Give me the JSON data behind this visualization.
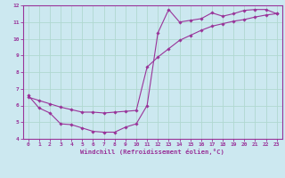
{
  "xlabel": "Windchill (Refroidissement éolien,°C)",
  "bg_color": "#cce8f0",
  "grid_color": "#b0d8d0",
  "line_color": "#993399",
  "spine_color": "#993399",
  "xlim": [
    -0.5,
    23.5
  ],
  "ylim": [
    4,
    12
  ],
  "xticks": [
    0,
    1,
    2,
    3,
    4,
    5,
    6,
    7,
    8,
    9,
    10,
    11,
    12,
    13,
    14,
    15,
    16,
    17,
    18,
    19,
    20,
    21,
    22,
    23
  ],
  "yticks": [
    4,
    5,
    6,
    7,
    8,
    9,
    10,
    11,
    12
  ],
  "curve1_x": [
    0,
    1,
    2,
    3,
    4,
    5,
    6,
    7,
    8,
    9,
    10,
    11,
    12,
    13,
    14,
    15,
    16,
    17,
    18,
    19,
    20,
    21,
    22,
    23
  ],
  "curve1_y": [
    6.6,
    5.85,
    5.55,
    4.9,
    4.85,
    4.65,
    4.45,
    4.4,
    4.4,
    4.7,
    4.9,
    6.0,
    10.35,
    11.75,
    11.0,
    11.1,
    11.2,
    11.55,
    11.35,
    11.5,
    11.7,
    11.75,
    11.75,
    11.5
  ],
  "curve2_x": [
    0,
    1,
    2,
    3,
    4,
    5,
    6,
    7,
    8,
    9,
    10,
    11,
    12,
    13,
    14,
    15,
    16,
    17,
    18,
    19,
    20,
    21,
    22,
    23
  ],
  "curve2_y": [
    6.5,
    6.3,
    6.1,
    5.9,
    5.75,
    5.6,
    5.6,
    5.55,
    5.6,
    5.65,
    5.7,
    8.3,
    8.9,
    9.4,
    9.9,
    10.2,
    10.5,
    10.75,
    10.9,
    11.05,
    11.15,
    11.3,
    11.42,
    11.5
  ],
  "tick_fontsize": 4.5,
  "xlabel_fontsize": 5.2,
  "marker_size": 1.8,
  "linewidth": 0.8
}
